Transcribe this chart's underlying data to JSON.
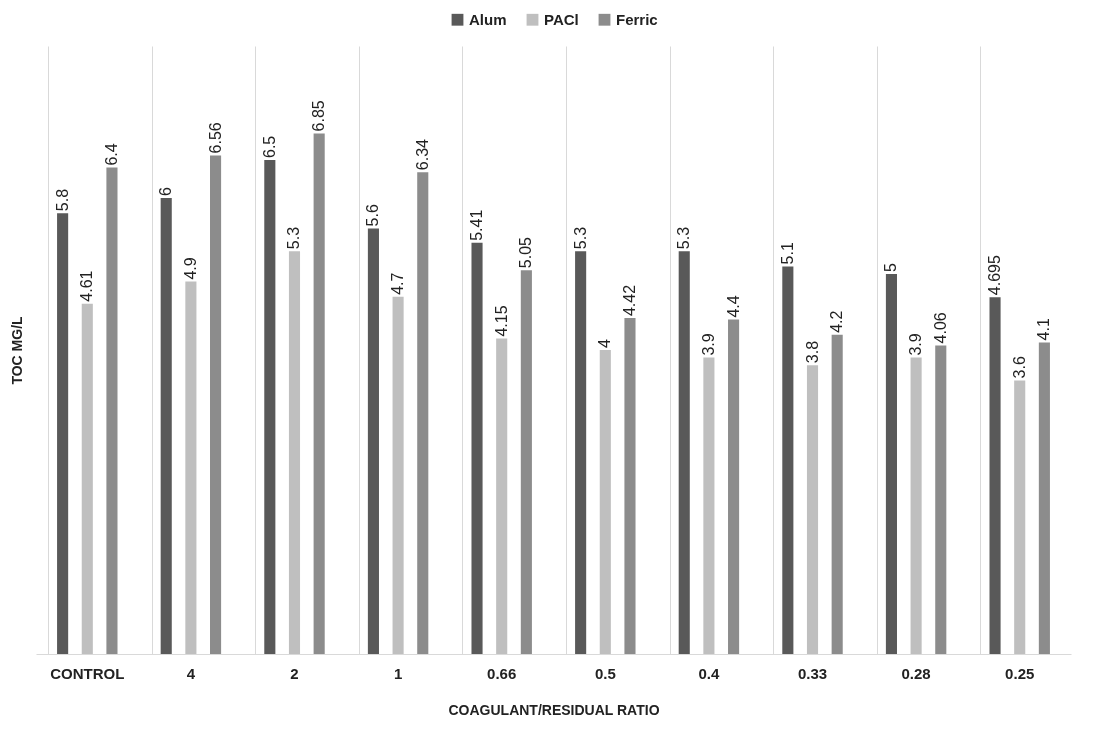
{
  "chart_data": {
    "type": "bar",
    "xlabel": "COAGULANT/RESIDUAL RATIO",
    "ylabel": "TOC MG/L",
    "categories": [
      "CONTROL",
      "4",
      "2",
      "1",
      "0.66",
      "0.5",
      "0.4",
      "0.33",
      "0.28",
      "0.25"
    ],
    "series": [
      {
        "name": "Alum",
        "color": "#595959",
        "values": [
          5.8,
          6,
          6.5,
          5.6,
          5.41,
          5.3,
          5.3,
          5.1,
          5,
          4.695
        ]
      },
      {
        "name": "PACl",
        "color": "#bfbfbf",
        "values": [
          4.61,
          4.9,
          5.3,
          4.7,
          4.15,
          4,
          3.9,
          3.8,
          3.9,
          3.6
        ]
      },
      {
        "name": "Ferric",
        "color": "#8c8c8c",
        "values": [
          6.4,
          6.56,
          6.85,
          6.34,
          5.05,
          4.42,
          4.4,
          4.2,
          4.06,
          4.1
        ]
      }
    ],
    "ylim": [
      0,
      8
    ],
    "tick_labels": "x",
    "data_labels": true,
    "grid": "x",
    "legend": "top"
  }
}
